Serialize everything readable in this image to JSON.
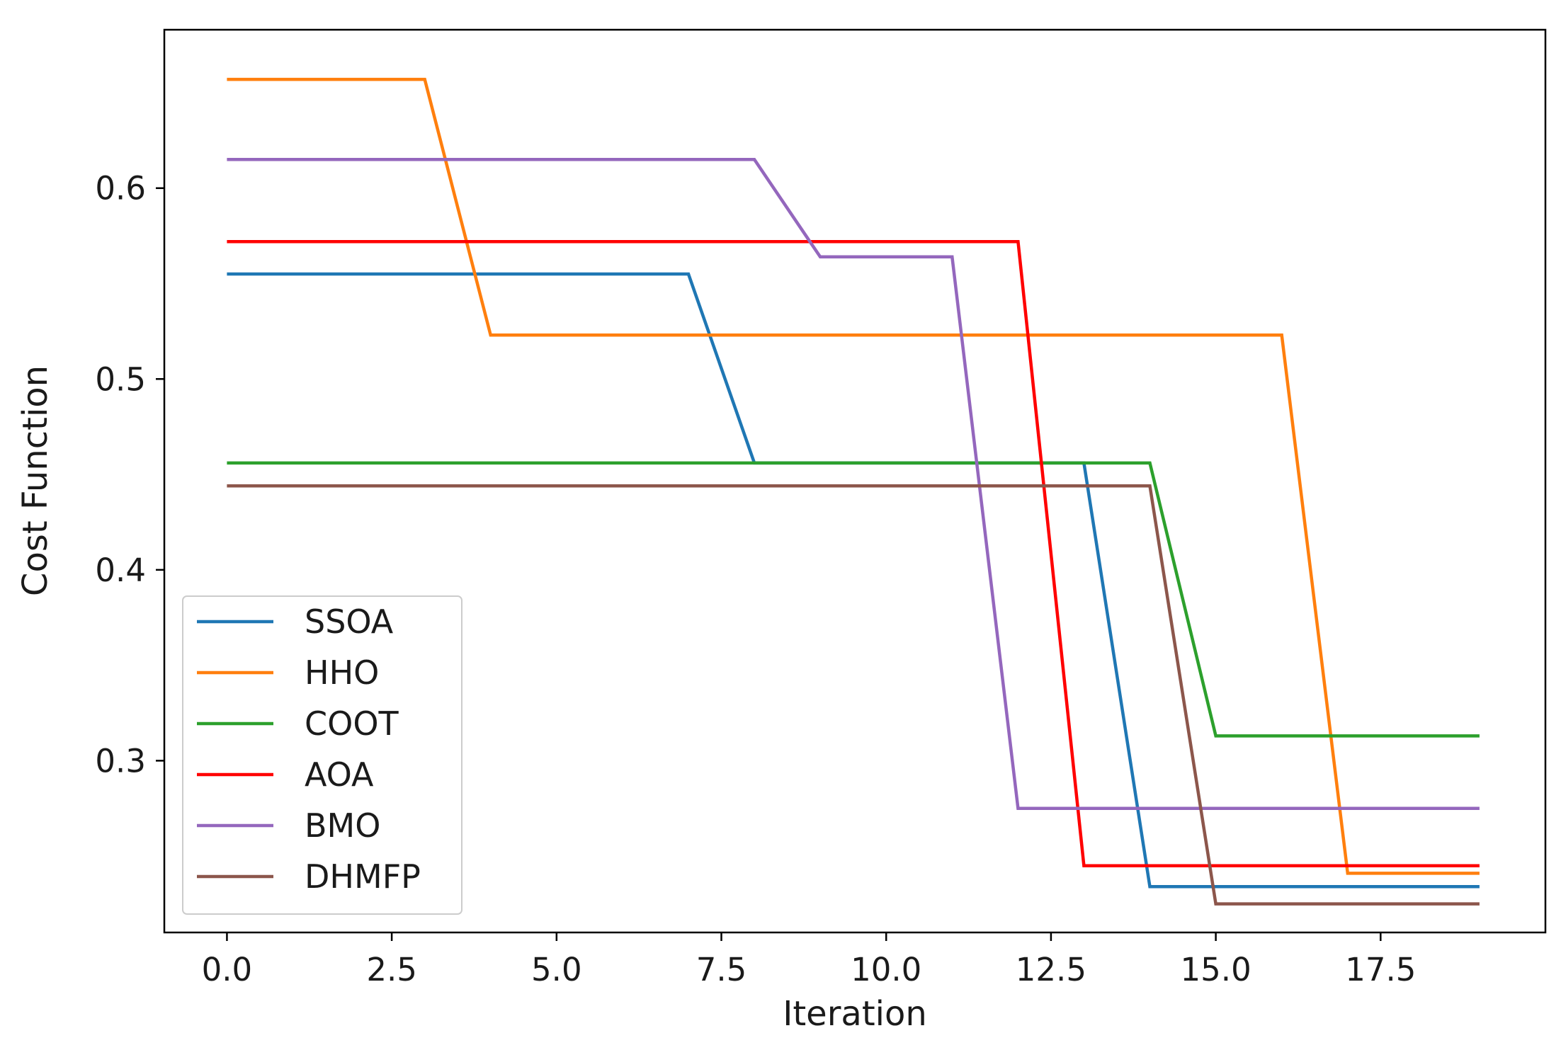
{
  "chart_data": {
    "type": "line",
    "title": "",
    "xlabel": "Iteration",
    "ylabel": "Cost Function",
    "xlim": [
      -0.95,
      20.0
    ],
    "ylim": [
      0.21,
      0.683
    ],
    "xticks": [
      0.0,
      2.5,
      5.0,
      7.5,
      10.0,
      12.5,
      15.0,
      17.5
    ],
    "xtick_labels": [
      "0.0",
      "2.5",
      "5.0",
      "7.5",
      "10.0",
      "12.5",
      "15.0",
      "17.5"
    ],
    "yticks": [
      0.3,
      0.4,
      0.5,
      0.6
    ],
    "ytick_labels": [
      "0.3",
      "0.4",
      "0.5",
      "0.6"
    ],
    "grid": false,
    "legend_position": "lower-left",
    "x": [
      0,
      1,
      2,
      3,
      4,
      5,
      6,
      7,
      8,
      9,
      10,
      11,
      12,
      13,
      14,
      15,
      16,
      17,
      18,
      19
    ],
    "series": [
      {
        "name": "SSOA",
        "color": "#1f77b4",
        "values": [
          0.555,
          0.555,
          0.555,
          0.555,
          0.555,
          0.555,
          0.555,
          0.555,
          0.456,
          0.456,
          0.456,
          0.456,
          0.456,
          0.456,
          0.234,
          0.234,
          0.234,
          0.234,
          0.234,
          0.234
        ]
      },
      {
        "name": "HHO",
        "color": "#ff7f0e",
        "values": [
          0.657,
          0.657,
          0.657,
          0.657,
          0.523,
          0.523,
          0.523,
          0.523,
          0.523,
          0.523,
          0.523,
          0.523,
          0.523,
          0.523,
          0.523,
          0.523,
          0.523,
          0.241,
          0.241,
          0.241
        ]
      },
      {
        "name": "COOT",
        "color": "#2ca02c",
        "values": [
          0.456,
          0.456,
          0.456,
          0.456,
          0.456,
          0.456,
          0.456,
          0.456,
          0.456,
          0.456,
          0.456,
          0.456,
          0.456,
          0.456,
          0.456,
          0.313,
          0.313,
          0.313,
          0.313,
          0.313
        ]
      },
      {
        "name": "AOA",
        "color": "#ff0000",
        "values": [
          0.572,
          0.572,
          0.572,
          0.572,
          0.572,
          0.572,
          0.572,
          0.572,
          0.572,
          0.572,
          0.572,
          0.572,
          0.572,
          0.245,
          0.245,
          0.245,
          0.245,
          0.245,
          0.245,
          0.245
        ]
      },
      {
        "name": "BMO",
        "color": "#9467bd",
        "values": [
          0.615,
          0.615,
          0.615,
          0.615,
          0.615,
          0.615,
          0.615,
          0.615,
          0.615,
          0.564,
          0.564,
          0.564,
          0.275,
          0.275,
          0.275,
          0.275,
          0.275,
          0.275,
          0.275,
          0.275
        ]
      },
      {
        "name": "DHMFP",
        "color": "#8c564b",
        "values": [
          0.444,
          0.444,
          0.444,
          0.444,
          0.444,
          0.444,
          0.444,
          0.444,
          0.444,
          0.444,
          0.444,
          0.444,
          0.444,
          0.444,
          0.444,
          0.225,
          0.225,
          0.225,
          0.225,
          0.225
        ]
      }
    ]
  }
}
